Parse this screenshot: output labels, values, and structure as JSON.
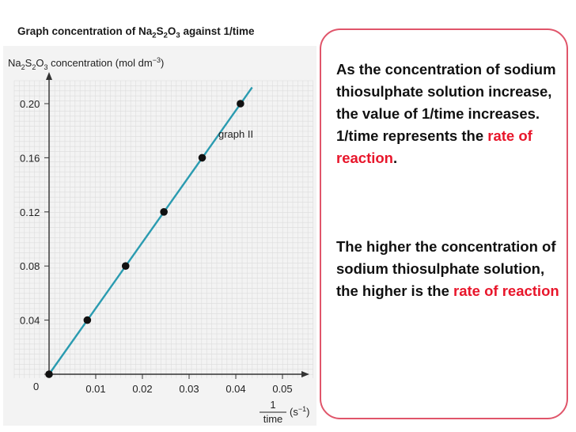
{
  "title": {
    "prefix": "Graph concentration of Na",
    "sub1": "2",
    "mid1": "S",
    "sub2": "2",
    "mid2": "O",
    "sub3": "3",
    "suffix": " against 1/time"
  },
  "colors": {
    "line": "#2a9bb0",
    "point": "#111111",
    "highlight": "#e8162b",
    "panel_border": "#e0556a"
  },
  "chart_data": {
    "type": "scatter",
    "ylabel": {
      "p1": "Na",
      "s1": "2",
      "p2": "S",
      "s2": "2",
      "p3": "O",
      "s3": "3",
      "p4": " concentration (mol dm",
      "sup": "−3",
      "p5": ")"
    },
    "xlabel": {
      "numerator": "1",
      "denominator": "time",
      "unit": "(s",
      "unit_sup": "−1",
      "unit_close": ")"
    },
    "x_ticks": [
      "0.01",
      "0.02",
      "0.03",
      "0.04",
      "0.05"
    ],
    "y_ticks": [
      "0",
      "0.04",
      "0.08",
      "0.12",
      "0.16",
      "0.20"
    ],
    "xlim": [
      0,
      0.05
    ],
    "ylim": [
      0,
      0.2
    ],
    "points": [
      {
        "x": 0.0,
        "y": 0.0
      },
      {
        "x": 0.0082,
        "y": 0.04
      },
      {
        "x": 0.0164,
        "y": 0.08
      },
      {
        "x": 0.0246,
        "y": 0.12
      },
      {
        "x": 0.0328,
        "y": 0.16
      },
      {
        "x": 0.041,
        "y": 0.2
      }
    ],
    "line": {
      "x": [
        0.0,
        0.0435
      ],
      "y": [
        0.0,
        0.212
      ]
    },
    "annotation": "graph II",
    "grid": true
  },
  "panel": {
    "para1": {
      "text": "As the concentration of sodium thiosulphate solution increase, the value of 1/time increases. 1/time represents the ",
      "highlight": "rate of reaction",
      "end": "."
    },
    "para2": {
      "text": "The higher the concentration of sodium thiosulphate solution, the higher is the ",
      "highlight": "rate of reaction"
    }
  }
}
